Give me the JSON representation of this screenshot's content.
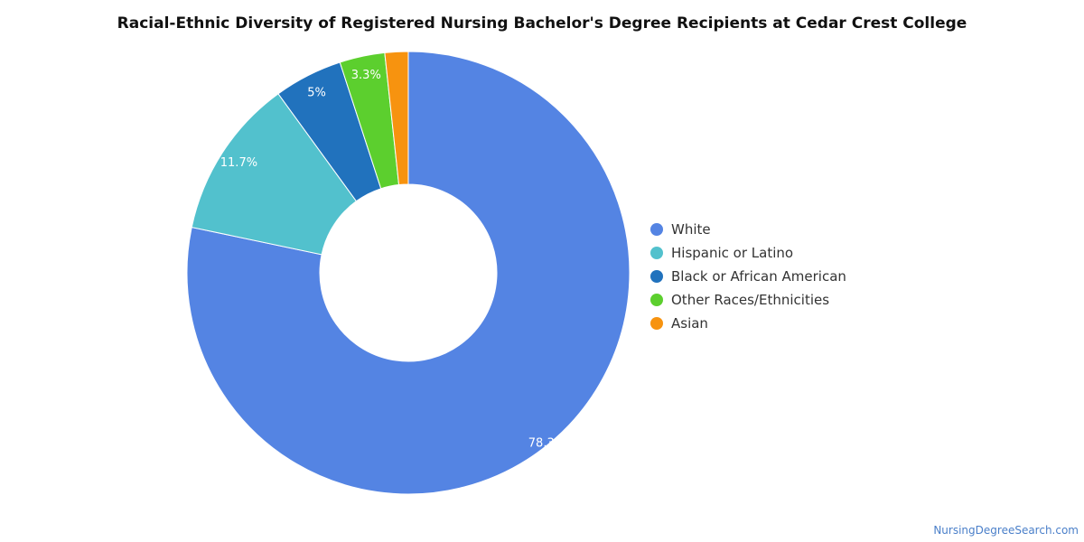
{
  "chart_data": {
    "type": "pie",
    "title": "Racial-Ethnic Diversity of Registered Nursing Bachelor's Degree Recipients at Cedar Crest College",
    "slices": [
      {
        "name": "White",
        "value": 78.3,
        "label": "78.3%",
        "color": "#5484e3"
      },
      {
        "name": "Hispanic or Latino",
        "value": 11.7,
        "label": "11.7%",
        "color": "#52c1cd"
      },
      {
        "name": "Black or African American",
        "value": 5.0,
        "label": "5%",
        "color": "#2172bd"
      },
      {
        "name": "Other Races/Ethnicities",
        "value": 3.3,
        "label": "3.3%",
        "color": "#5ccf2e"
      },
      {
        "name": "Asian",
        "value": 1.7,
        "label": "",
        "color": "#f7930f"
      }
    ],
    "legend_position": "right"
  },
  "footer": {
    "credit": "NursingDegreeSearch.com"
  }
}
